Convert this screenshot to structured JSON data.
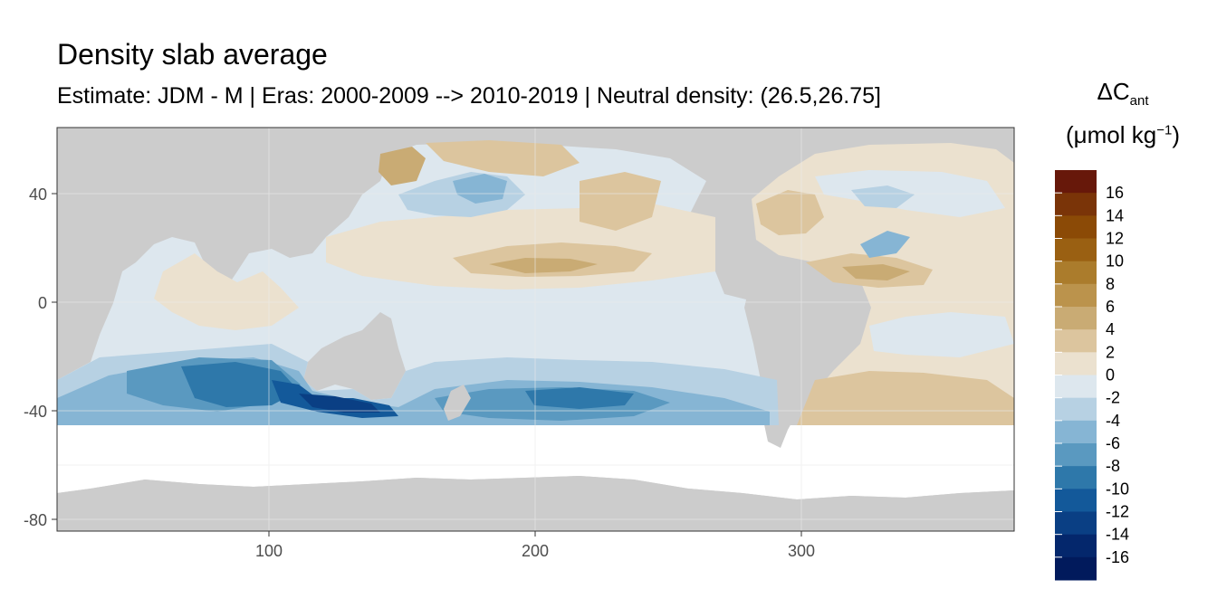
{
  "title": "Density slab average",
  "subtitle": "Estimate: JDM - M | Eras: 2000-2009 --> 2010-2019 | Neutral density: (26.5,26.75]",
  "legend": {
    "symbol": "ΔC",
    "symbol_sub": "ant",
    "unit": "(μmol kg",
    "unit_sup": "−1",
    "unit_close": ")",
    "levels": [
      "16",
      "14",
      "12",
      "10",
      "8",
      "6",
      "4",
      "2",
      "0",
      "-2",
      "-4",
      "-6",
      "-8",
      "-10",
      "-12",
      "-14",
      "-16"
    ],
    "colors": [
      "#67180a",
      "#7a3408",
      "#8b4a06",
      "#9a6012",
      "#ab7c2c",
      "#bb934c",
      "#c9ab74",
      "#dcc59e",
      "#ebe1cf",
      "#dde7ee",
      "#b7d1e3",
      "#86b5d4",
      "#5a99c0",
      "#2e78aa",
      "#13599a",
      "#0a3f84",
      "#04276c",
      "#011a5c"
    ]
  },
  "axes": {
    "x_ticks": [
      "100",
      "200",
      "300"
    ],
    "y_ticks": [
      "40",
      "0",
      "-40",
      "-80"
    ]
  },
  "map": {
    "land_color": "#cccccc",
    "ocean_nodata_color": "#ffffff",
    "panel_border": "#333333"
  }
}
